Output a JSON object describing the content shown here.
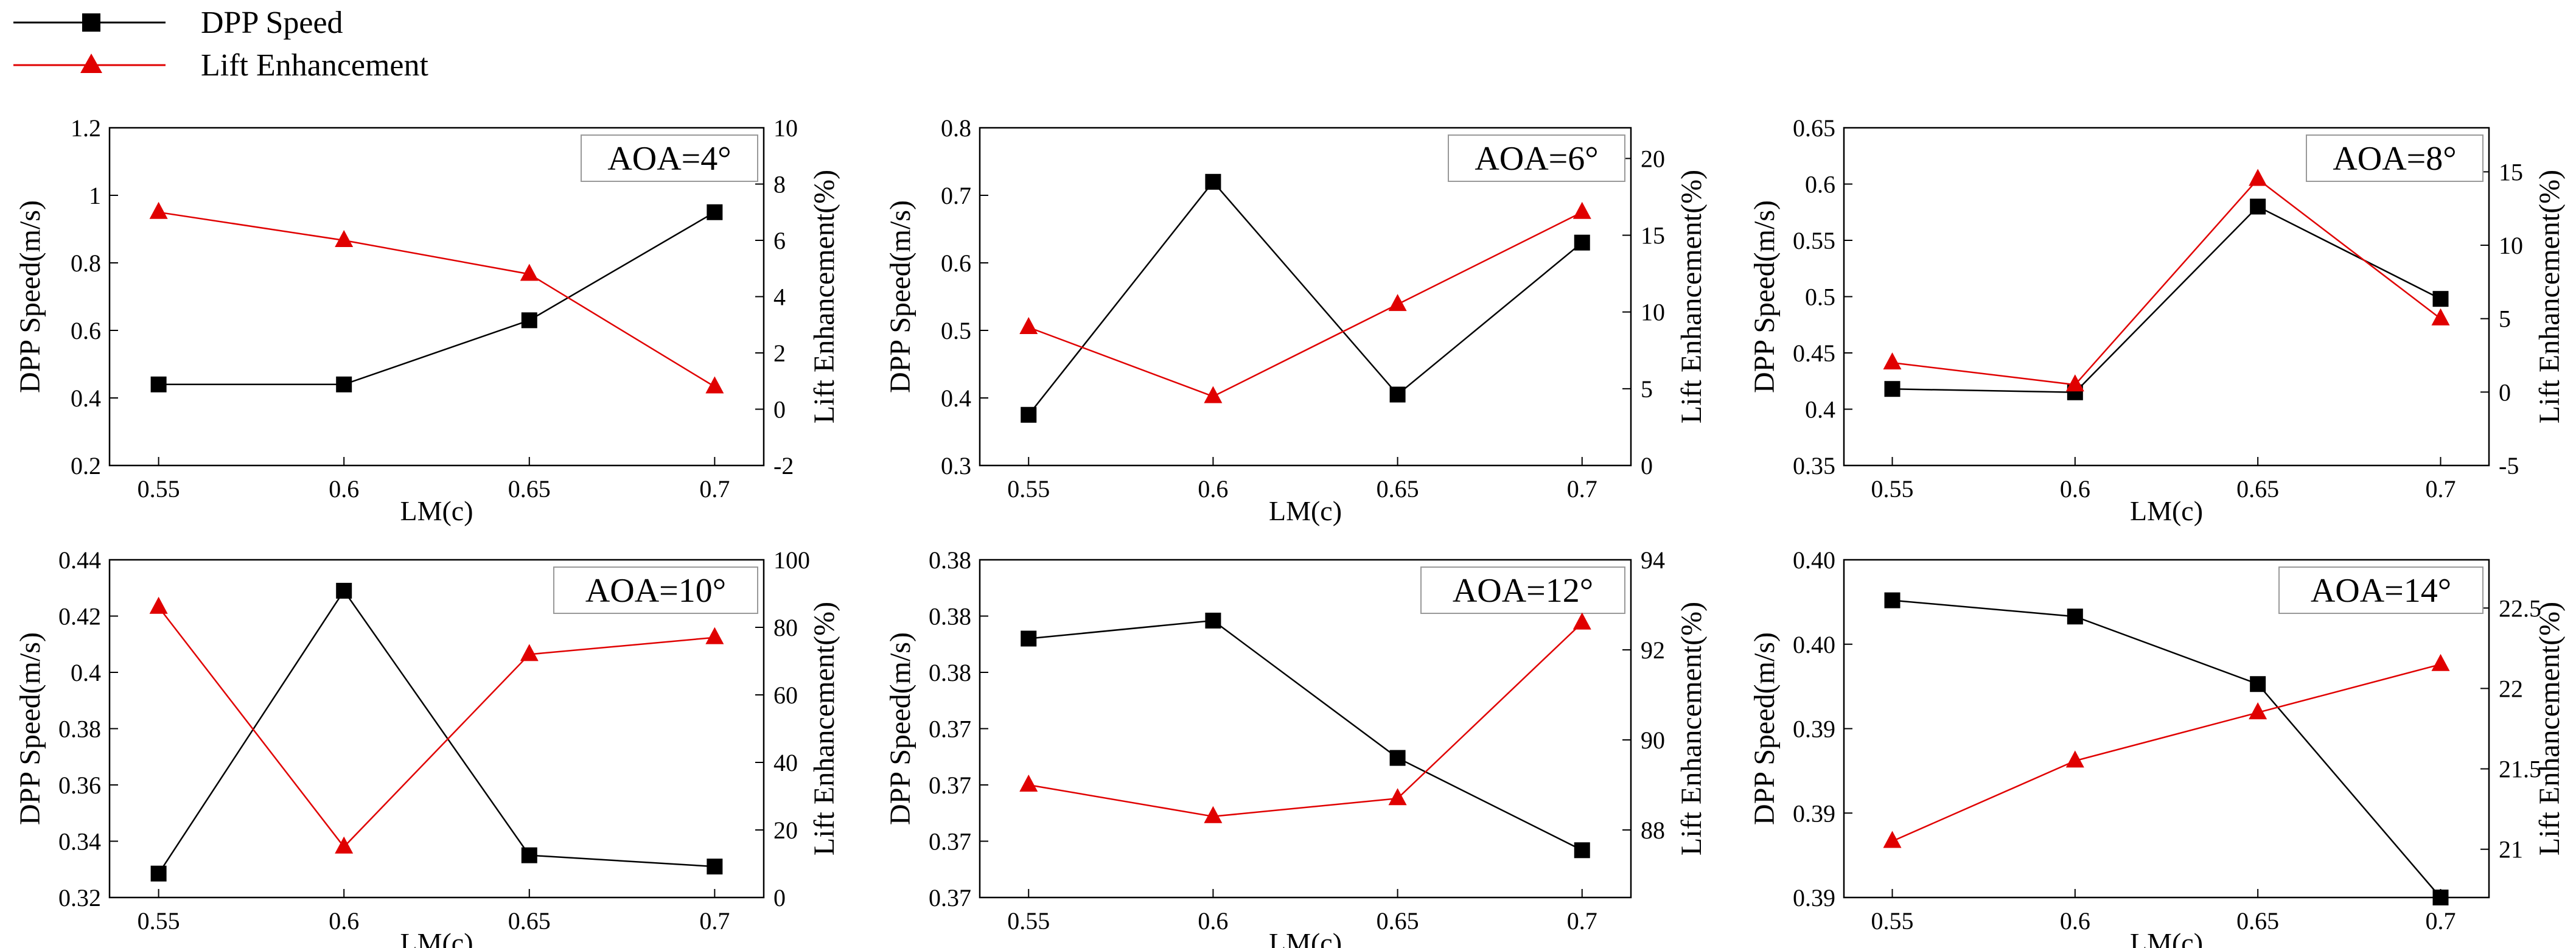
{
  "legend": {
    "position": "top-left",
    "entries": [
      {
        "label": "DPP Speed",
        "color": "#000000",
        "marker": "square"
      },
      {
        "label": "Lift Enhancement",
        "color": "#e00000",
        "marker": "triangle"
      }
    ]
  },
  "chart_data": [
    {
      "type": "line",
      "title": "AOA=4°",
      "xlabel": "LM(c)",
      "ylabel": "DPP Speed(m/s)",
      "y2label": "Lift Enhancement(%)",
      "categories": [
        "0.55",
        "0.6",
        "0.65",
        "0.7"
      ],
      "x": [
        0.55,
        0.6,
        0.65,
        0.7
      ],
      "ylim": [
        0.2,
        1.2
      ],
      "yticks": [
        "0.2",
        "0.4",
        "0.6",
        "0.8",
        "1",
        "1.2"
      ],
      "y2lim": [
        -2,
        10
      ],
      "y2ticks": [
        "-2",
        "0",
        "2",
        "4",
        "6",
        "8",
        "10"
      ],
      "series": [
        {
          "name": "DPP Speed",
          "axis": "left",
          "values": [
            0.44,
            0.44,
            0.63,
            0.95
          ]
        },
        {
          "name": "Lift Enhancement",
          "axis": "right",
          "values": [
            7.0,
            6.0,
            4.8,
            0.8
          ]
        }
      ]
    },
    {
      "type": "line",
      "title": "AOA=6°",
      "xlabel": "LM(c)",
      "ylabel": "DPP Speed(m/s)",
      "y2label": "Lift Enhancement(%)",
      "categories": [
        "0.55",
        "0.6",
        "0.65",
        "0.7"
      ],
      "x": [
        0.55,
        0.6,
        0.65,
        0.7
      ],
      "ylim": [
        0.3,
        0.8
      ],
      "yticks": [
        "0.3",
        "0.4",
        "0.5",
        "0.6",
        "0.7",
        "0.8"
      ],
      "y2lim": [
        0,
        22
      ],
      "y2ticks": [
        "0",
        "5",
        "10",
        "15",
        "20"
      ],
      "series": [
        {
          "name": "DPP Speed",
          "axis": "left",
          "values": [
            0.375,
            0.72,
            0.405,
            0.63
          ]
        },
        {
          "name": "Lift Enhancement",
          "axis": "right",
          "values": [
            9.0,
            4.5,
            10.5,
            16.5
          ]
        }
      ]
    },
    {
      "type": "line",
      "title": "AOA=8°",
      "xlabel": "LM(c)",
      "ylabel": "DPP Speed(m/s)",
      "y2label": "Lift Enhancement(%)",
      "categories": [
        "0.55",
        "0.6",
        "0.65",
        "0.7"
      ],
      "x": [
        0.55,
        0.6,
        0.65,
        0.7
      ],
      "ylim": [
        0.35,
        0.65
      ],
      "yticks": [
        "0.35",
        "0.4",
        "0.45",
        "0.5",
        "0.55",
        "0.6",
        "0.65"
      ],
      "y2lim": [
        -5,
        18
      ],
      "y2ticks": [
        "-5",
        "0",
        "5",
        "10",
        "15"
      ],
      "series": [
        {
          "name": "DPP Speed",
          "axis": "left",
          "values": [
            0.418,
            0.415,
            0.58,
            0.498
          ]
        },
        {
          "name": "Lift Enhancement",
          "axis": "right",
          "values": [
            2.0,
            0.5,
            14.5,
            5.0
          ]
        }
      ]
    },
    {
      "type": "line",
      "title": "AOA=10°",
      "xlabel": "LM(c)",
      "ylabel": "DPP Speed(m/s)",
      "y2label": "Lift Enhancement(%)",
      "categories": [
        "0.55",
        "0.6",
        "0.65",
        "0.7"
      ],
      "x": [
        0.55,
        0.6,
        0.65,
        0.7
      ],
      "ylim": [
        0.32,
        0.44
      ],
      "yticks": [
        "0.32",
        "0.34",
        "0.36",
        "0.38",
        "0.4",
        "0.42",
        "0.44"
      ],
      "y2lim": [
        0,
        100
      ],
      "y2ticks": [
        "0",
        "20",
        "40",
        "60",
        "80",
        "100"
      ],
      "series": [
        {
          "name": "DPP Speed",
          "axis": "left",
          "values": [
            0.3285,
            0.429,
            0.335,
            0.331
          ]
        },
        {
          "name": "Lift Enhancement",
          "axis": "right",
          "values": [
            86,
            15,
            72,
            77
          ]
        }
      ]
    },
    {
      "type": "line",
      "title": "AOA=12°",
      "xlabel": "LM(c)",
      "ylabel": "DPP Speed(m/s)",
      "y2label": "Lift Enhancement(%)",
      "categories": [
        "0.55",
        "0.6",
        "0.65",
        "0.7"
      ],
      "x": [
        0.55,
        0.6,
        0.65,
        0.7
      ],
      "ylim": [
        0.365,
        0.38
      ],
      "yticks": [
        "0.37",
        "0.37",
        "0.37",
        "0.37",
        "0.38",
        "0.38",
        "0.38"
      ],
      "y2lim": [
        86.5,
        94
      ],
      "y2ticks": [
        "88",
        "90",
        "92",
        "94"
      ],
      "series": [
        {
          "name": "DPP Speed",
          "axis": "left",
          "values": [
            0.3765,
            0.3773,
            0.3712,
            0.3671
          ]
        },
        {
          "name": "Lift Enhancement",
          "axis": "right",
          "values": [
            89.0,
            88.3,
            88.7,
            92.6
          ]
        }
      ]
    },
    {
      "type": "line",
      "title": "AOA=14°",
      "xlabel": "LM(c)",
      "ylabel": "DPP Speed(m/s)",
      "y2label": "Lift Enhancement(%)",
      "categories": [
        "0.55",
        "0.6",
        "0.65",
        "0.7"
      ],
      "x": [
        0.55,
        0.6,
        0.65,
        0.7
      ],
      "ylim": [
        0.3875,
        0.4
      ],
      "yticks": [
        "0.39",
        "0.39",
        "0.39",
        "0.40",
        "0.40"
      ],
      "y2lim": [
        20.7,
        22.8
      ],
      "y2ticks": [
        "21",
        "21.5",
        "22",
        "22.5"
      ],
      "series": [
        {
          "name": "DPP Speed",
          "axis": "left",
          "values": [
            0.3985,
            0.3979,
            0.3954,
            0.3875
          ]
        },
        {
          "name": "Lift Enhancement",
          "axis": "right",
          "values": [
            21.05,
            21.55,
            21.85,
            22.15
          ]
        }
      ]
    }
  ]
}
